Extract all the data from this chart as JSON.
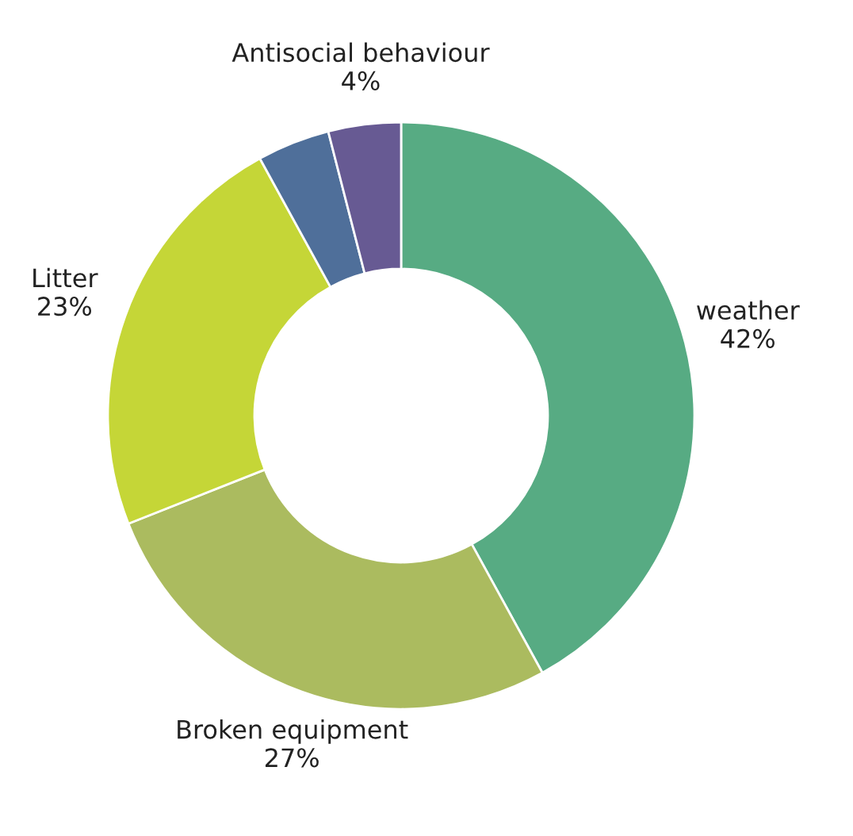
{
  "chart_data": {
    "type": "donut",
    "categories": [
      "weather",
      "Broken equipment",
      "Litter",
      null,
      "Antisocial behaviour"
    ],
    "values": [
      42,
      27,
      23,
      4,
      4
    ],
    "value_labels": [
      "42%",
      "27%",
      "23%",
      null,
      "4%"
    ],
    "colors": [
      "#57ab83",
      "#abbb5f",
      "#c5d637",
      "#4f6f9a",
      "#675a93"
    ],
    "legend": false
  }
}
